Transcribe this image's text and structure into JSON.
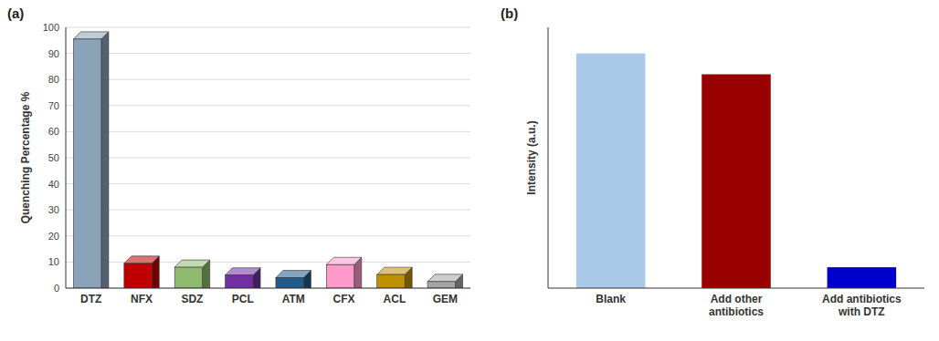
{
  "chart_data": [
    {
      "type": "bar",
      "title": "(a)",
      "categories": [
        "DTZ",
        "NFX",
        "SDZ",
        "PCL",
        "ATM",
        "CFX",
        "ACL",
        "GEM"
      ],
      "values": [
        95.5,
        9.5,
        8.0,
        5.0,
        4.0,
        9.0,
        5.2,
        2.5
      ],
      "colors": [
        "#8ba3b8",
        "#c00000",
        "#8fbb6e",
        "#7030a0",
        "#1f5c8b",
        "#ff99cc",
        "#bf9000",
        "#a5a5a5"
      ],
      "y_label": "Quenching Percentage %",
      "ylim": [
        0,
        100
      ],
      "yticks": [
        0,
        10,
        20,
        30,
        40,
        50,
        60,
        70,
        80,
        90,
        100
      ],
      "grid": true
    },
    {
      "type": "bar",
      "title": "(b)",
      "categories": [
        "Blank",
        "Add other\nantibiotics",
        "Add antibiotics\nwith DTZ"
      ],
      "values": [
        90,
        82,
        8
      ],
      "colors": [
        "#aac8e8",
        "#990000",
        "#0000cc"
      ],
      "y_label": "Intensity (a.u.)",
      "ylim": [
        0,
        100
      ],
      "grid": false,
      "tick_labels": "x"
    }
  ]
}
